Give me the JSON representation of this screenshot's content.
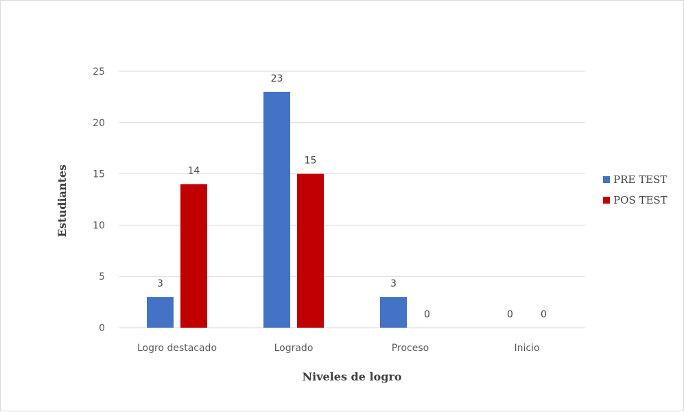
{
  "chart_data": {
    "type": "bar",
    "categories": [
      "Logro destacado",
      "Logrado",
      "Proceso",
      "Inicio"
    ],
    "series": [
      {
        "name": "PRE TEST",
        "values": [
          3,
          23,
          3,
          0
        ],
        "color": "#4472C4"
      },
      {
        "name": "POS TEST",
        "values": [
          14,
          15,
          0,
          0
        ],
        "color": "#C00000"
      }
    ],
    "xlabel": "Niveles de logro",
    "ylabel": "Estudiantes",
    "ylim": [
      0,
      25
    ],
    "yticks": [
      0,
      5,
      10,
      15,
      20,
      25
    ],
    "grid": true,
    "legend_position": "right"
  }
}
